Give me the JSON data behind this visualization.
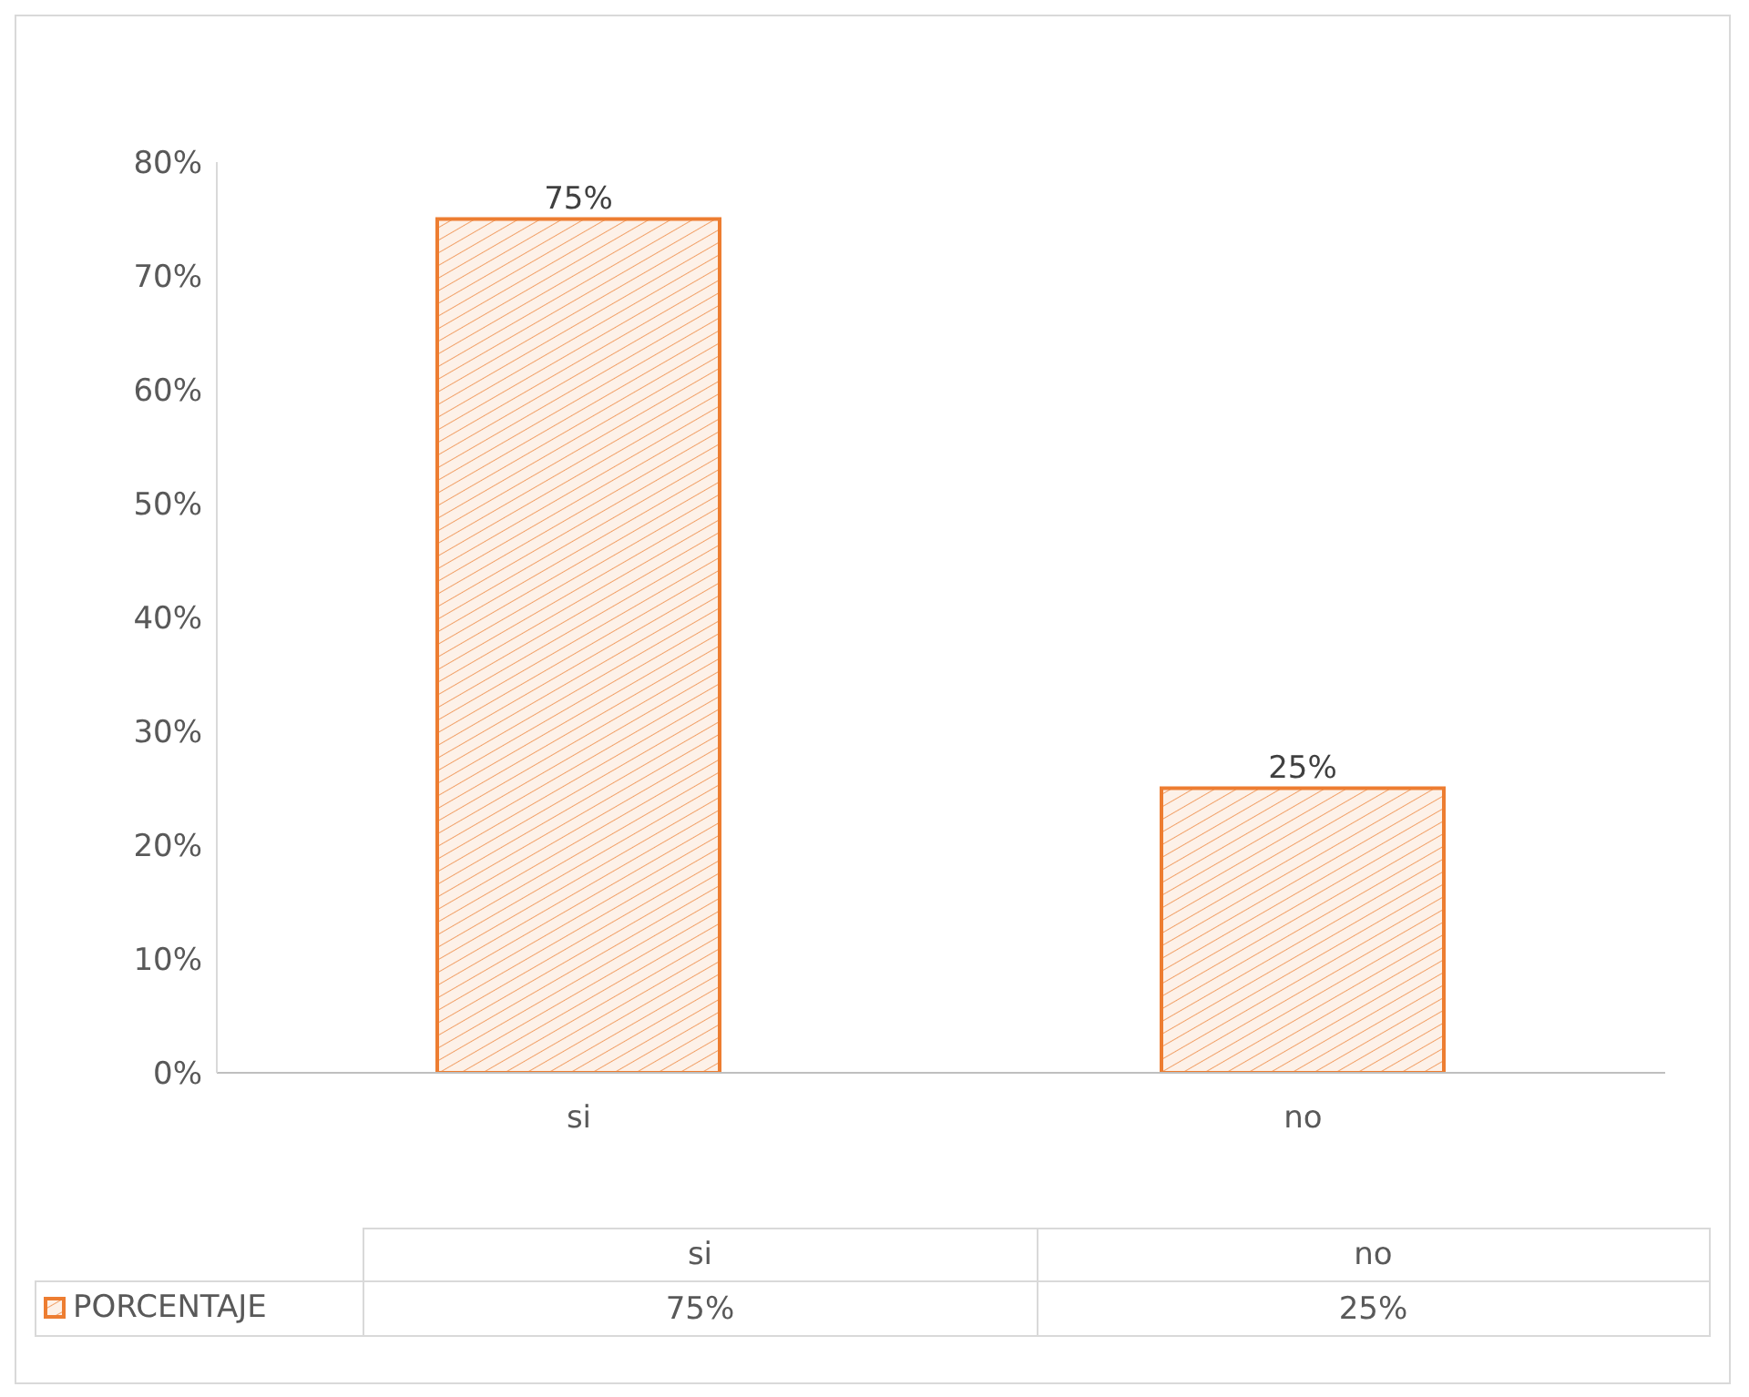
{
  "chart_data": {
    "type": "bar",
    "categories": [
      "si",
      "no"
    ],
    "series": [
      {
        "name": "PORCENTAJE",
        "color": "#ed7d31",
        "values": [
          75,
          25
        ],
        "value_labels": [
          "75%",
          "25%"
        ]
      }
    ],
    "ylim": [
      0,
      80
    ],
    "yticks": [
      {
        "value": 0,
        "label": "0%"
      },
      {
        "value": 10,
        "label": "10%"
      },
      {
        "value": 20,
        "label": "20%"
      },
      {
        "value": 30,
        "label": "30%"
      },
      {
        "value": 40,
        "label": "40%"
      },
      {
        "value": 50,
        "label": "50%"
      },
      {
        "value": 60,
        "label": "60%"
      },
      {
        "value": 70,
        "label": "70%"
      },
      {
        "value": 80,
        "label": "80%"
      }
    ],
    "legend": "bottom"
  }
}
